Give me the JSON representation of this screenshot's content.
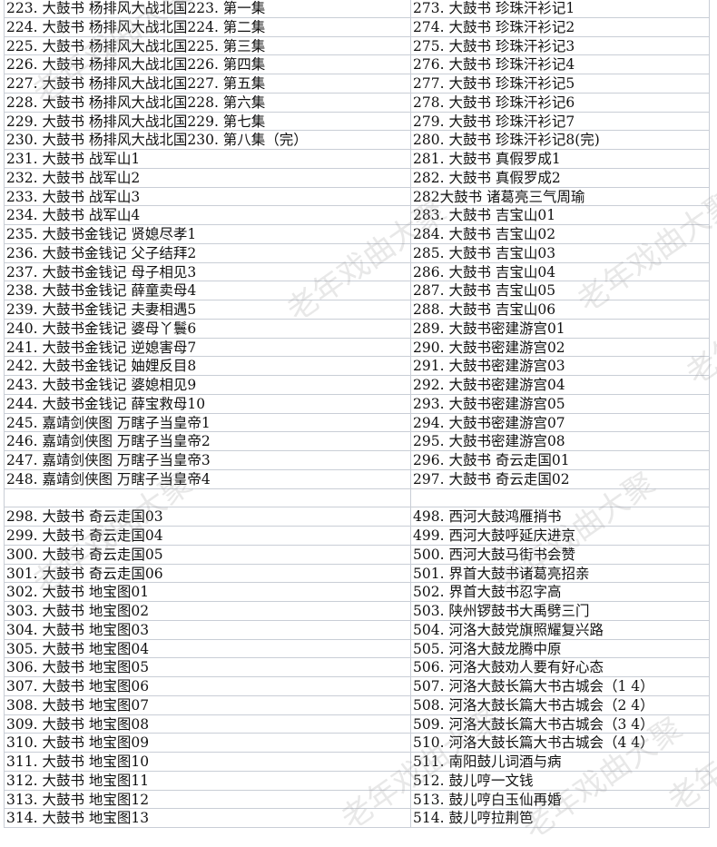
{
  "watermark": "老年戏曲大聚",
  "block1": {
    "left": [
      "223. 大鼓书  杨排风大战北国223. 第一集",
      "224. 大鼓书  杨排风大战北国224. 第二集",
      "225. 大鼓书  杨排风大战北国225. 第三集",
      "226. 大鼓书  杨排风大战北国226. 第四集",
      "227. 大鼓书  杨排风大战北国227. 第五集",
      "228. 大鼓书  杨排风大战北国228. 第六集",
      "229. 大鼓书  杨排风大战北国229. 第七集",
      "230. 大鼓书  杨排风大战北国230. 第八集（完）",
      "231. 大鼓书  战军山1",
      "232. 大鼓书  战军山2",
      "233. 大鼓书  战军山3",
      "234. 大鼓书  战军山4",
      "235. 大鼓书金钱记  贤媳尽孝1",
      "236. 大鼓书金钱记  父子结拜2",
      "237. 大鼓书金钱记  母子相见3",
      "238. 大鼓书金钱记  薛童卖母4",
      "239. 大鼓书金钱记  夫妻相遇5",
      "240. 大鼓书金钱记  婆母丫鬟6",
      "241. 大鼓书金钱记  逆媳害母7",
      "242. 大鼓书金钱记  妯娌反目8",
      "243. 大鼓书金钱记  婆媳相见9",
      "244. 大鼓书金钱记  薛宝救母10",
      "245. 嘉靖剑侠图  万瞎子当皇帝1",
      "246. 嘉靖剑侠图  万瞎子当皇帝2",
      "247. 嘉靖剑侠图  万瞎子当皇帝3",
      "248. 嘉靖剑侠图  万瞎子当皇帝4"
    ],
    "right": [
      "273. 大鼓书  珍珠汗衫记1",
      "274. 大鼓书  珍珠汗衫记2",
      "275. 大鼓书  珍珠汗衫记3",
      "276. 大鼓书  珍珠汗衫记4",
      "277. 大鼓书  珍珠汗衫记5",
      "278. 大鼓书  珍珠汗衫记6",
      "279. 大鼓书  珍珠汗衫记7",
      "280. 大鼓书  珍珠汗衫记8(完)",
      "281. 大鼓书  真假罗成1",
      "282. 大鼓书  真假罗成2",
      "282大鼓书  诸葛亮三气周瑜",
      "283. 大鼓书  吉宝山01",
      "284. 大鼓书  吉宝山02",
      "285. 大鼓书  吉宝山03",
      "286. 大鼓书  吉宝山04",
      "287. 大鼓书  吉宝山05",
      "288. 大鼓书  吉宝山06",
      "289. 大鼓书密建游宫01",
      "290. 大鼓书密建游宫02",
      "291. 大鼓书密建游宫03",
      "292. 大鼓书密建游宫04",
      "293. 大鼓书密建游宫05",
      "294. 大鼓书密建游宫07",
      "295. 大鼓书密建游宫08",
      "296. 大鼓书  奇云走国01",
      "297. 大鼓书  奇云走国02"
    ]
  },
  "block2": {
    "left": [
      "298. 大鼓书  奇云走国03",
      "299. 大鼓书  奇云走国04",
      "300. 大鼓书  奇云走国05",
      "301. 大鼓书  奇云走国06",
      "302. 大鼓书  地宝图01",
      "303. 大鼓书  地宝图02",
      "304. 大鼓书  地宝图03",
      "305. 大鼓书  地宝图04",
      "306. 大鼓书  地宝图05",
      "307. 大鼓书  地宝图06",
      "308. 大鼓书  地宝图07",
      "309. 大鼓书  地宝图08",
      "310. 大鼓书  地宝图09",
      "311. 大鼓书  地宝图10",
      "312. 大鼓书  地宝图11",
      "313. 大鼓书  地宝图12",
      "314. 大鼓书  地宝图13"
    ],
    "right": [
      "498. 西河大鼓鸿雁捎书",
      "499. 西河大鼓呼延庆进京",
      "500. 西河大鼓马街书会赞",
      "501. 界首大鼓书诸葛亮招亲",
      "502. 界首大鼓书忍字高",
      "503. 陕州锣鼓书大禹劈三门",
      "504. 河洛大鼓党旗照耀复兴路",
      "505. 河洛大鼓龙腾中原",
      "506. 河洛大鼓劝人要有好心态",
      "507. 河洛大鼓长篇大书古城会（1 4）",
      "508. 河洛大鼓长篇大书古城会（2 4）",
      "509. 河洛大鼓长篇大书古城会（3 4）",
      "510. 河洛大鼓长篇大书古城会（4 4）",
      "511. 南阳鼓儿词酒与病",
      "512. 鼓儿哼一文钱",
      "513. 鼓儿哼白玉仙再婚",
      "514. 鼓儿哼拉荆笆"
    ]
  }
}
